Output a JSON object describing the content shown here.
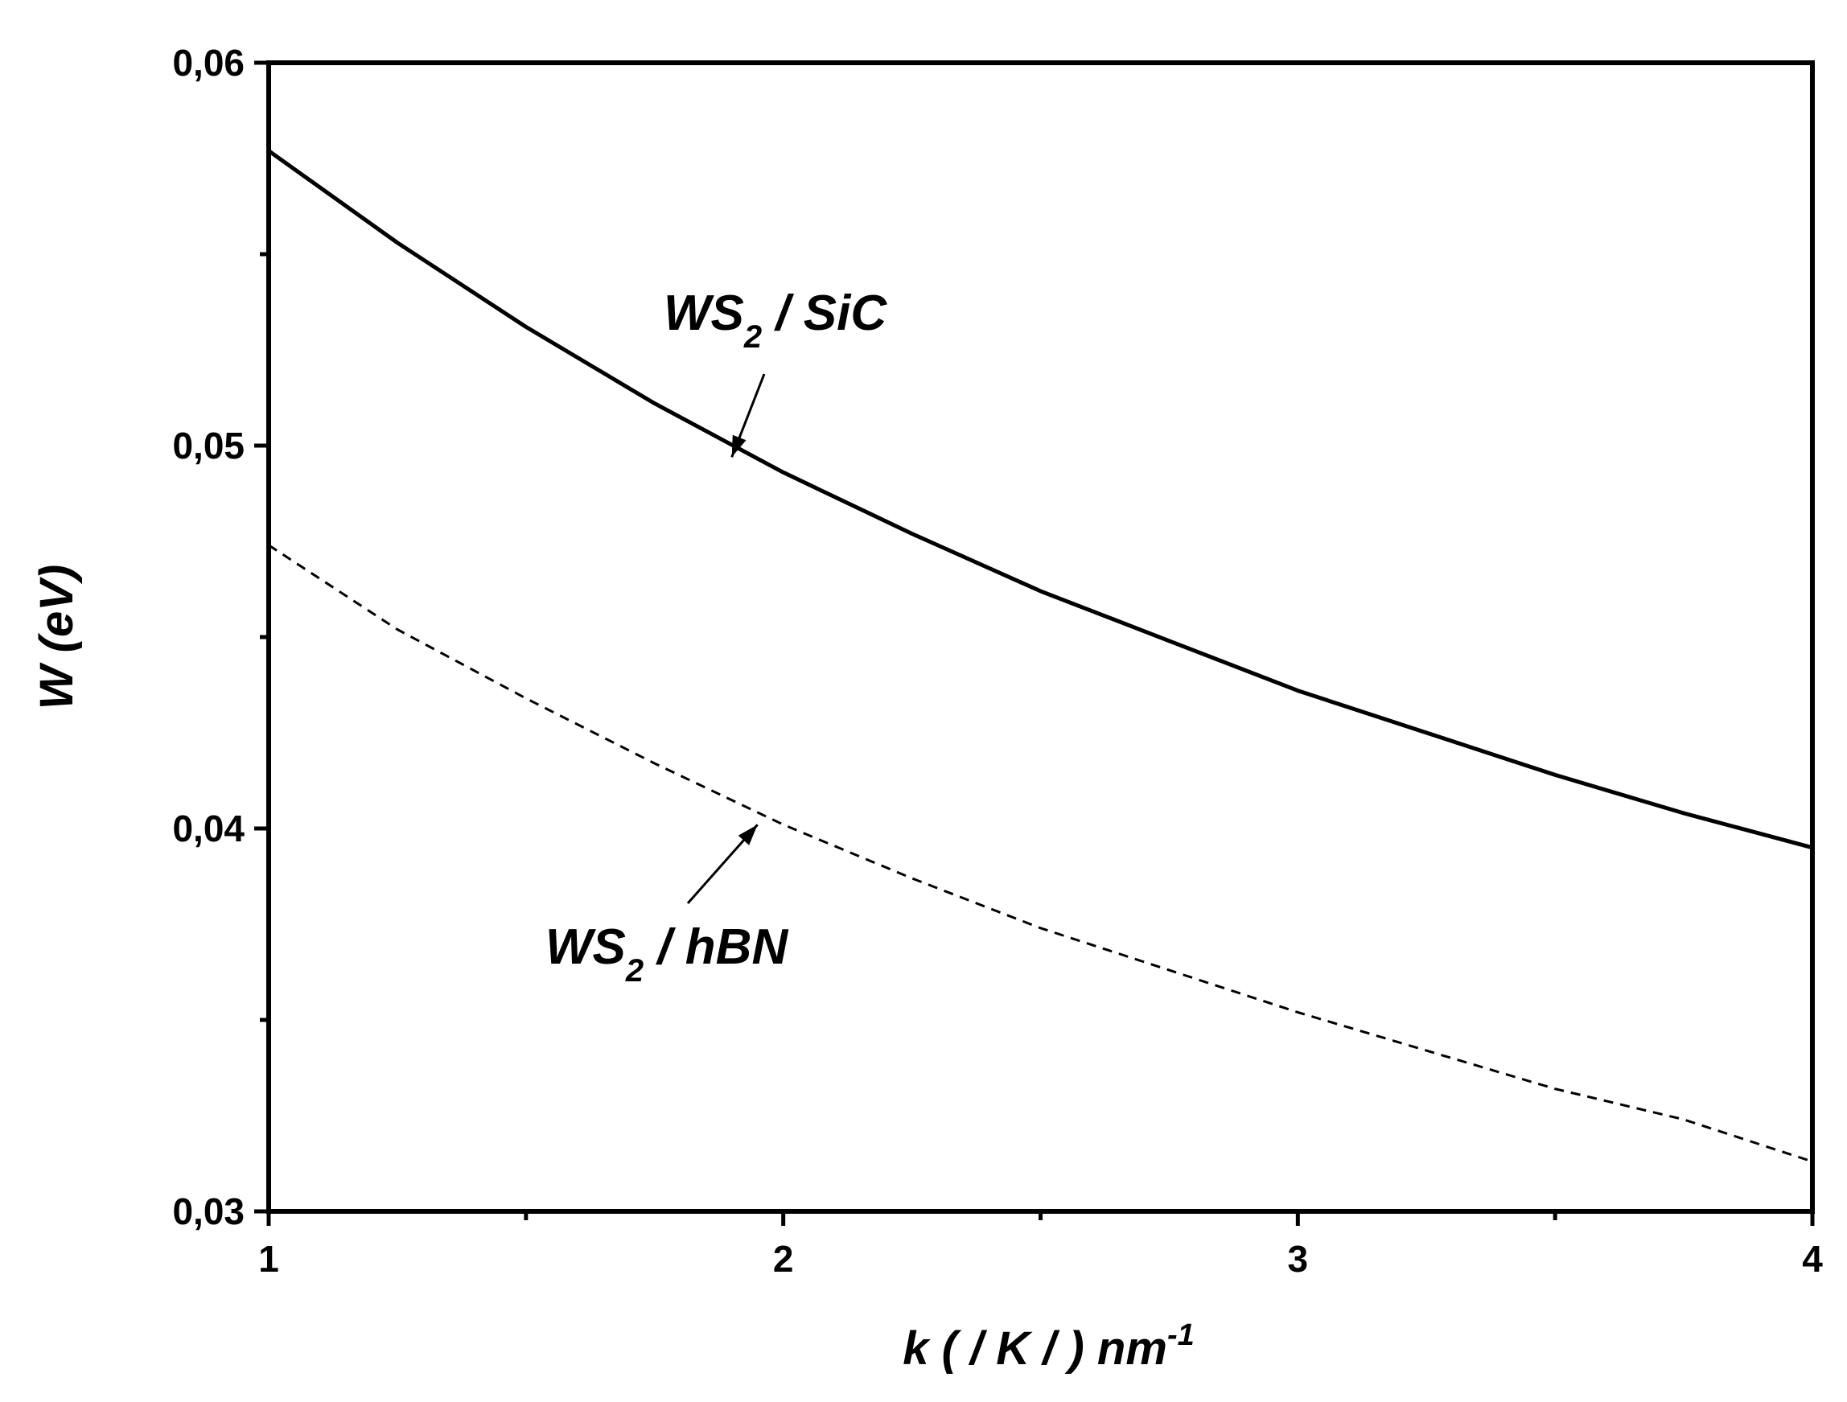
{
  "chart_data": {
    "type": "line",
    "xlabel": "k ( / K / ) nm",
    "xlabel_superscript": "-1",
    "ylabel": "W (eV)",
    "xlim": [
      1,
      4
    ],
    "ylim": [
      0.03,
      0.06
    ],
    "x_ticks": [
      1,
      2,
      3,
      4
    ],
    "x_tick_labels": [
      "1",
      "2",
      "3",
      "4"
    ],
    "x_minor_ticks": [
      1.5,
      2.5,
      3.5
    ],
    "y_ticks": [
      0.03,
      0.04,
      0.05,
      0.06
    ],
    "y_tick_labels": [
      "0,03",
      "0,04",
      "0,05",
      "0,06"
    ],
    "y_minor_ticks": [
      0.035,
      0.045,
      0.055
    ],
    "grid": false,
    "series": [
      {
        "name": "WS2 / SiC",
        "label_main": "WS",
        "label_sub": "2",
        "label_rest": " / SiC",
        "style": "solid",
        "color": "#000000",
        "x": [
          1.0,
          1.25,
          1.5,
          1.75,
          2.0,
          2.25,
          2.5,
          2.75,
          3.0,
          3.25,
          3.5,
          3.75,
          4.0
        ],
        "y": [
          0.0577,
          0.0553,
          0.0531,
          0.0511,
          0.0493,
          0.0477,
          0.0462,
          0.0449,
          0.0436,
          0.0425,
          0.0414,
          0.0404,
          0.0395
        ],
        "annotation_arrow_to": [
          1.9,
          0.0497
        ]
      },
      {
        "name": "WS2 / hBN",
        "label_main": "WS",
        "label_sub": "2",
        "label_rest": " / hBN",
        "style": "dashed",
        "color": "#000000",
        "x": [
          1.0,
          1.25,
          1.5,
          1.75,
          2.0,
          2.25,
          2.5,
          2.75,
          3.0,
          3.25,
          3.5,
          3.75,
          4.0
        ],
        "y": [
          0.0474,
          0.0452,
          0.0434,
          0.0417,
          0.0401,
          0.0387,
          0.0374,
          0.0363,
          0.0352,
          0.0342,
          0.0332,
          0.0324,
          0.0313
        ],
        "annotation_arrow_to": [
          1.95,
          0.0401
        ]
      }
    ]
  }
}
